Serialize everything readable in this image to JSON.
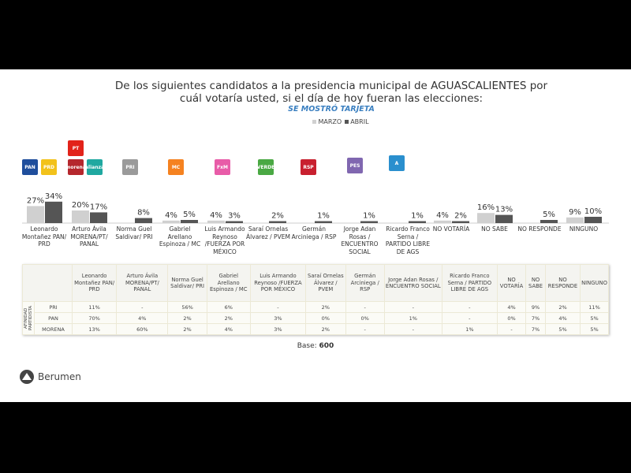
{
  "title_line1": "De los siguientes candidatos a la presidencia municipal de AGUASCALIENTES por",
  "title_line2": "cuál votaría usted, si el día de hoy fueran las elecciones:",
  "subtitle": "SE MOSTRÓ TARJETA",
  "base_label": "Base:",
  "base_value": "600",
  "brand": "Berumen",
  "logos": [
    {
      "text": "PAN",
      "color": "#1f4e9c"
    },
    {
      "text": "PRD",
      "color": "#f2c21b"
    },
    {
      "text": "PT",
      "color": "#e2231a"
    },
    {
      "text": "morena",
      "color": "#b5272d"
    },
    {
      "text": "alianza",
      "color": "#1fa8a0"
    },
    {
      "text": "PRI",
      "color": "#9a9a9a"
    },
    {
      "text": "MC",
      "color": "#f58220"
    },
    {
      "text": "FxM",
      "color": "#e85ca8"
    },
    {
      "text": "VERDE",
      "color": "#4aa843"
    },
    {
      "text": "RSP",
      "color": "#c8202f"
    },
    {
      "text": "PES",
      "color": "#8067b0"
    },
    {
      "text": "A",
      "color": "#2a8fce"
    }
  ],
  "chart_data": {
    "type": "bar",
    "title": "De los siguientes candidatos a la presidencia municipal de AGUASCALIENTES por cuál votaría usted, si el día de hoy fueran las elecciones:",
    "categories": [
      "Leonardo Montañez PAN/ PRD",
      "Arturo Ávila MORENA/PT/ PANAL",
      "Norma Guel Saldivar/ PRI",
      "Gabriel Arellano Espinoza / MC",
      "Luis Armando Reynoso /FUERZA POR MÉXICO",
      "Saraí Ornelas Álvarez / PVEM",
      "Germán Arciniega / RSP",
      "Jorge Adan Rosas / ENCUENTRO SOCIAL",
      "Ricardo Franco Serna / PARTIDO LIBRE DE AGS",
      "NO VOTARÍA",
      "NO SABE",
      "NO RESPONDE",
      "NINGUNO"
    ],
    "series": [
      {
        "name": "MARZO",
        "color": "#d0d0d0",
        "values": [
          27,
          20,
          null,
          4,
          4,
          null,
          null,
          null,
          null,
          4,
          16,
          null,
          9
        ]
      },
      {
        "name": "ABRIL",
        "color": "#555555",
        "values": [
          34,
          17,
          8,
          5,
          3,
          2,
          1,
          1,
          1,
          2,
          13,
          5,
          10
        ]
      }
    ],
    "unit": "%",
    "legend": "top-center",
    "grid": false
  },
  "table": {
    "row_group_label": "AFINIDAD PARTIDISTA",
    "headers": [
      "Leonardo Montañez PAN/ PRD",
      "Arturo Ávila MORENA/PT/ PANAL",
      "Norma Guel Saldivar/ PRI",
      "Gabriel Arellano Espinoza / MC",
      "Luis Armando Reynoso /FUERZA POR MÉXICO",
      "Saraí Ornelas Álvarez / PVEM",
      "Germán Arciniega / RSP",
      "Jorge Adan Rosas / ENCUENTRO SOCIAL",
      "Ricardo Franco Serna / PARTIDO LIBRE DE AGS",
      "NO VOTARÍA",
      "NO SABE",
      "NO RESPONDE",
      "NINGUNO"
    ],
    "rows": [
      {
        "label": "PRI",
        "cells": [
          "11%",
          "-",
          "56%",
          "6%",
          "-",
          "2%",
          "-",
          "-",
          "-",
          "4%",
          "9%",
          "2%",
          "11%"
        ]
      },
      {
        "label": "PAN",
        "cells": [
          "70%",
          "4%",
          "2%",
          "2%",
          "3%",
          "0%",
          "0%",
          "1%",
          "-",
          "0%",
          "7%",
          "4%",
          "5%"
        ]
      },
      {
        "label": "MORENA",
        "cells": [
          "13%",
          "60%",
          "2%",
          "4%",
          "3%",
          "2%",
          "-",
          "-",
          "1%",
          "-",
          "7%",
          "5%",
          "5%"
        ]
      }
    ]
  }
}
